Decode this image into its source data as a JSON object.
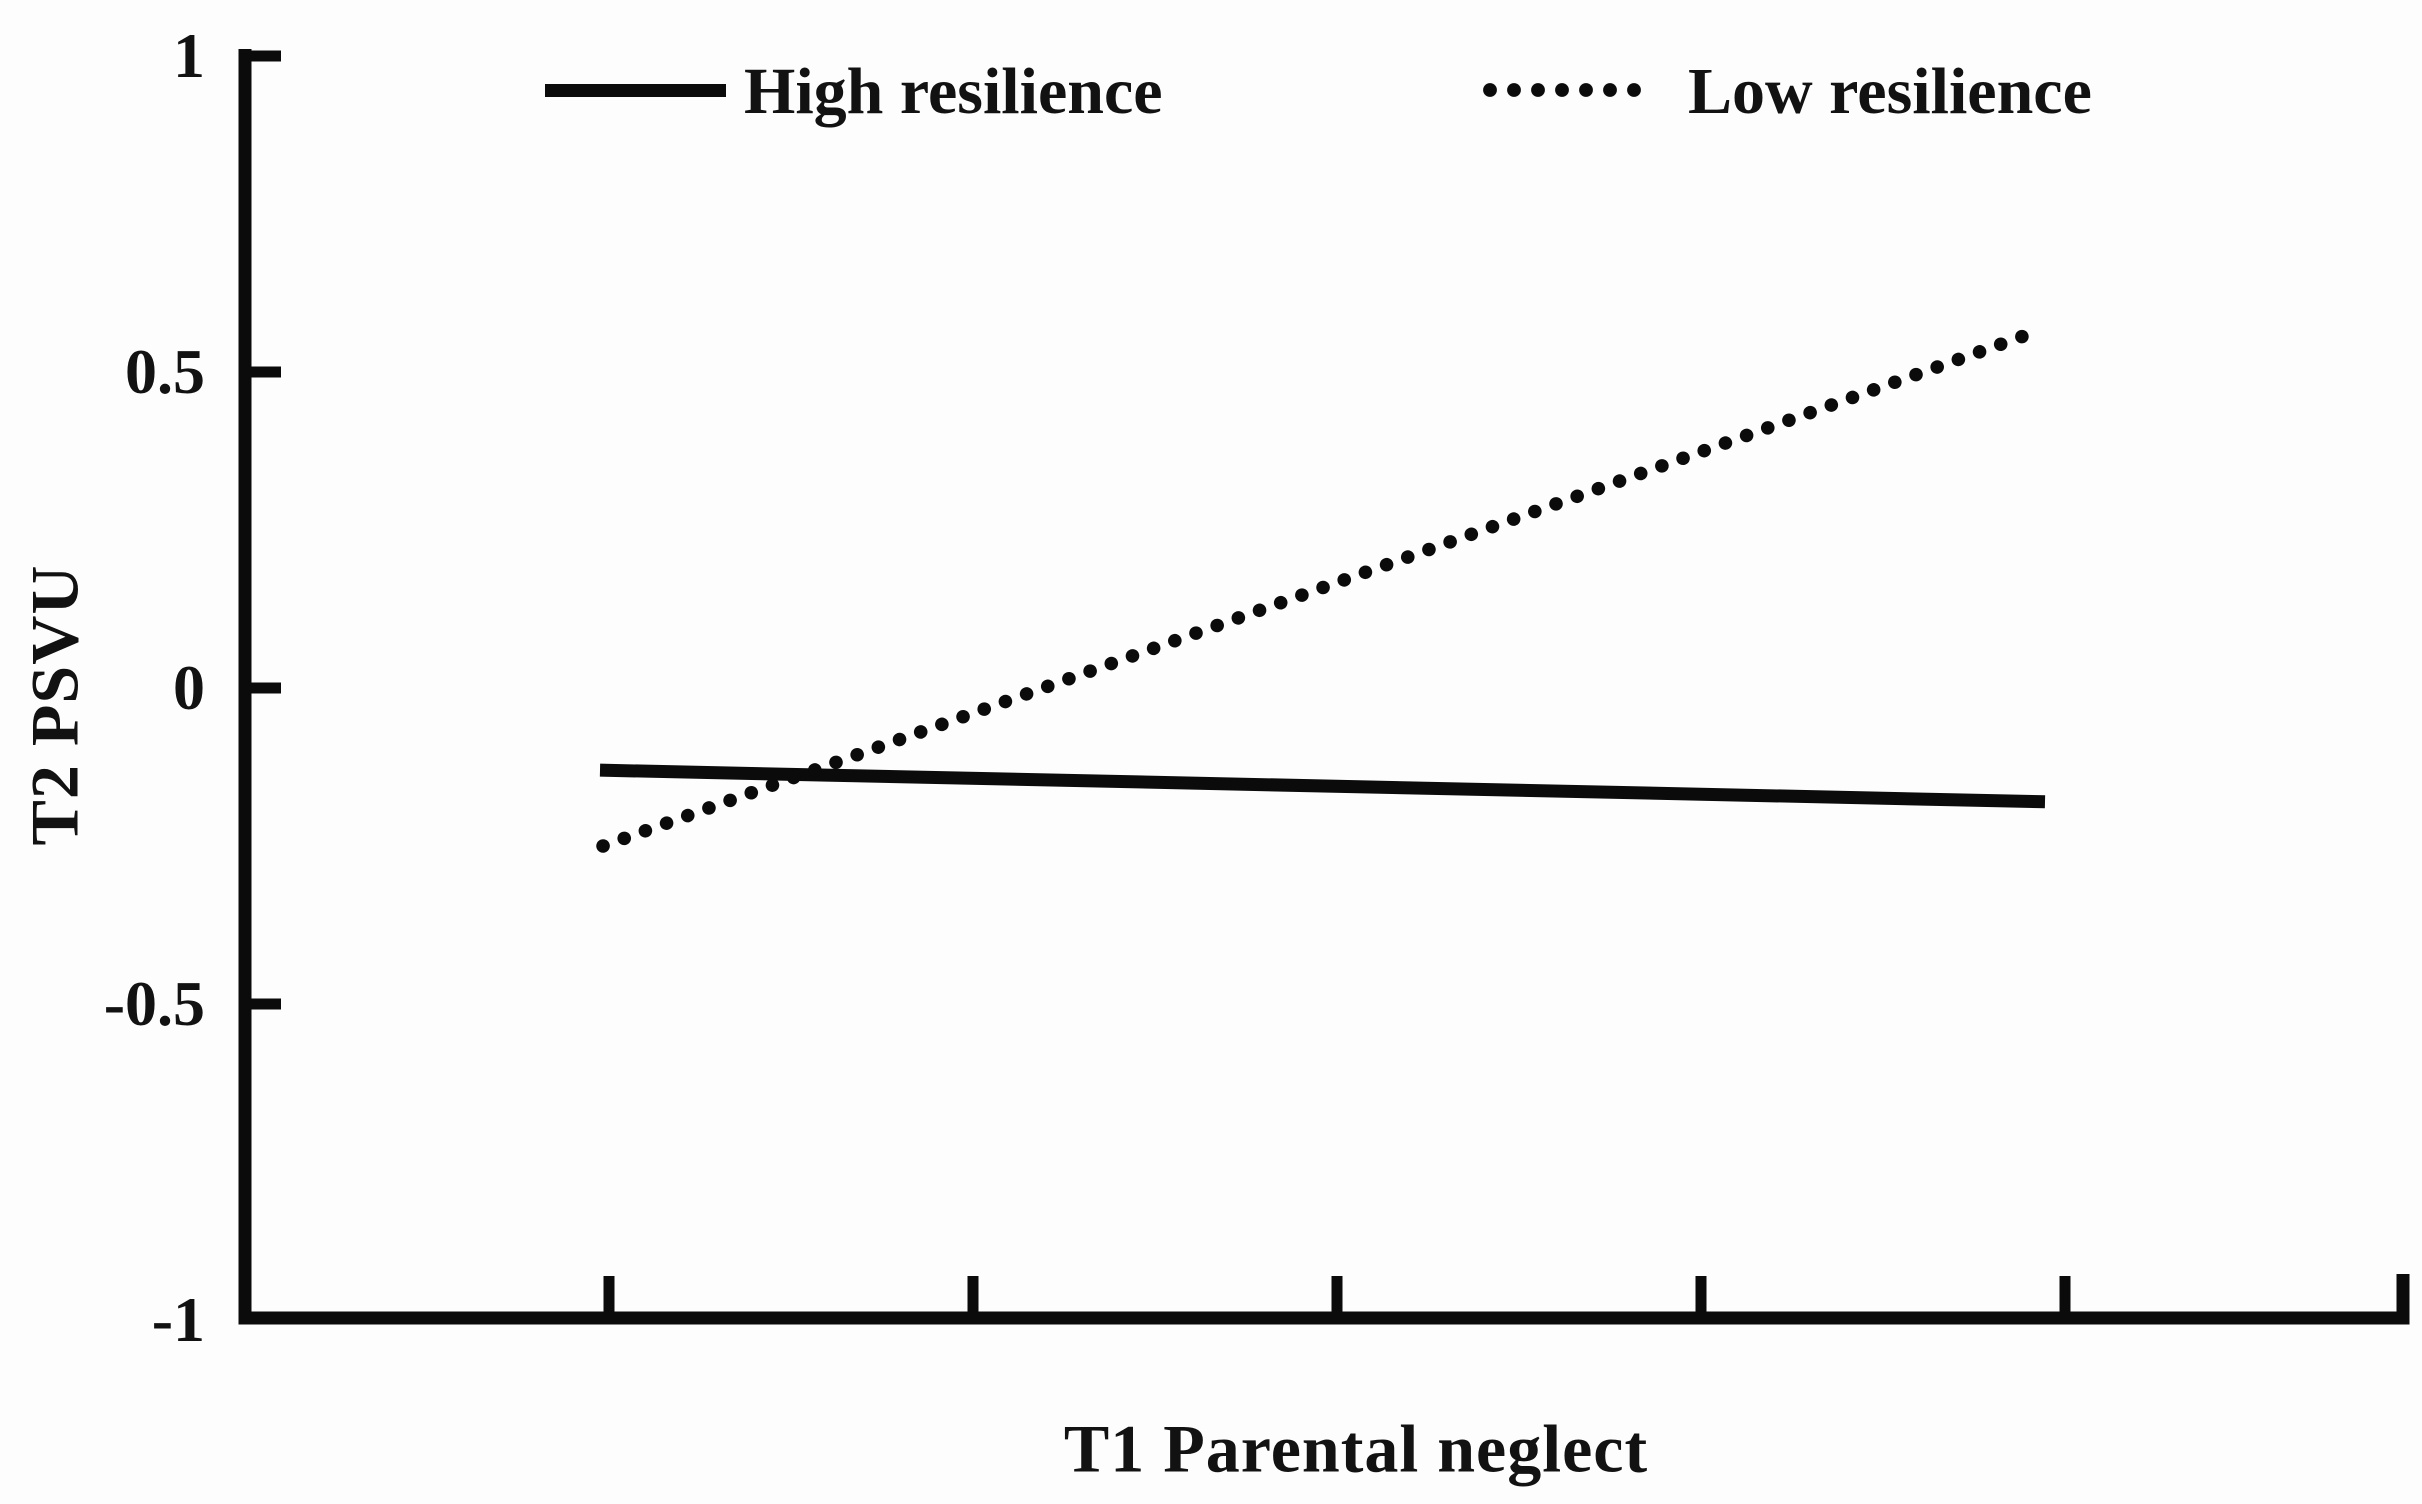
{
  "figure": {
    "background_color": "#fdfdfd",
    "ink_color": "#0b0b0b"
  },
  "legend": {
    "position": "top",
    "items": [
      {
        "label": "High resilience",
        "swatch": "solid-line"
      },
      {
        "label": "Low resilience",
        "swatch": "dotted-line"
      }
    ]
  },
  "chart_data": {
    "type": "line",
    "title": "",
    "xlabel": "T1 Parental neglect",
    "ylabel": "T2 PSVU",
    "ylim": [
      -1,
      1
    ],
    "grid": false,
    "legend_position": "top",
    "yticks": [
      {
        "value": 1,
        "label": "1"
      },
      {
        "value": 0.5,
        "label": "0.5"
      },
      {
        "value": 0,
        "label": "0"
      },
      {
        "value": -0.5,
        "label": "-0.5"
      },
      {
        "value": -1,
        "label": "-1"
      }
    ],
    "xticks": {
      "count": 5,
      "labels": [
        "",
        "",
        "",
        "",
        ""
      ]
    },
    "series": [
      {
        "name": "High resilience",
        "line_style": "solid",
        "x": [
          0,
          1
        ],
        "values": [
          -0.13,
          -0.18
        ]
      },
      {
        "name": "Low resilience",
        "line_style": "dotted",
        "x": [
          0,
          1
        ],
        "values": [
          -0.25,
          0.56
        ]
      }
    ]
  }
}
